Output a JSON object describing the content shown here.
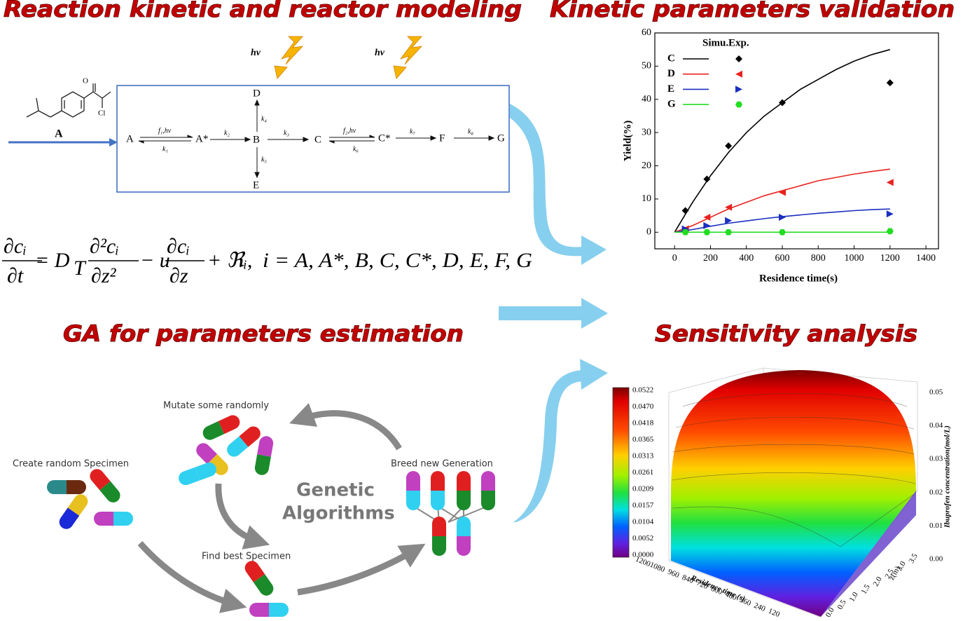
{
  "panels": {
    "reaction": "Reaction kinetic and reactor modeling",
    "validation": "Kinetic parameters validation",
    "ga": "GA for parameters estimation",
    "sensitivity": "Sensitivity analysis"
  },
  "reaction": {
    "molecule_label": "A",
    "atoms": [
      "O",
      "Cl"
    ],
    "light": [
      "hν",
      "hν"
    ],
    "species": {
      "A": "A",
      "A_star": "A*",
      "B": "B",
      "C": "C",
      "C_star": "C*",
      "F": "F",
      "G": "G",
      "D": "D",
      "E": "E"
    },
    "rates": {
      "f1": "f₁,hν",
      "k1": "k₁",
      "k2": "k₂",
      "k3": "k₃",
      "f2": "f₂,hν",
      "k6": "k₆",
      "k7": "k₇",
      "k8": "k₈",
      "k4": "k₄",
      "k5": "k₅"
    }
  },
  "equation": {
    "t1_num": "∂cᵢ",
    "t1_den": "∂t",
    "eq": "= D",
    "sub": "T",
    "t2_num": "∂²cᵢ",
    "t2_den": "∂z²",
    "minus": "− u",
    "t3_num": "∂cᵢ",
    "t3_den": "∂z",
    "plus": "+ ℜᵢ,",
    "index": "i = A, A*, B, C, C*, D, E, F, G"
  },
  "chart_data": {
    "type": "line",
    "xlabel": "Residence time(s)",
    "ylabel": "Yield(%)",
    "legend_headers": [
      "Simu.",
      "Exp."
    ],
    "x": [
      0,
      100,
      200,
      300,
      400,
      500,
      600,
      700,
      800,
      900,
      1000,
      1100,
      1200
    ],
    "exp_x": [
      60,
      180,
      300,
      600,
      1200
    ],
    "xlim": [
      -110,
      1470
    ],
    "xticks": [
      0,
      200,
      400,
      600,
      800,
      1000,
      1200,
      1400
    ],
    "ylim": [
      -5,
      60
    ],
    "yticks": [
      0,
      10,
      20,
      30,
      40,
      50,
      60
    ],
    "series": [
      {
        "name": "C",
        "color": "#000000",
        "marker": "diamond",
        "values": [
          0,
          9,
          17,
          24,
          30,
          35,
          39,
          43,
          46,
          49,
          51.5,
          53.5,
          55
        ],
        "exp_values": [
          6.5,
          16,
          26,
          39,
          45
        ]
      },
      {
        "name": "D",
        "color": "#e8231f",
        "marker": "triangle-left",
        "values": [
          0,
          2,
          4.5,
          7,
          9,
          11,
          12.5,
          14,
          15.5,
          16.5,
          17.5,
          18.3,
          19
        ],
        "exp_values": [
          1,
          4.5,
          7.5,
          12,
          15
        ]
      },
      {
        "name": "E",
        "color": "#1b2fbf",
        "marker": "triangle-right",
        "values": [
          0,
          0.8,
          1.8,
          2.7,
          3.4,
          4.1,
          4.7,
          5.2,
          5.7,
          6.1,
          6.5,
          6.8,
          7
        ],
        "exp_values": [
          1,
          2,
          3.5,
          4.5,
          5.5
        ]
      },
      {
        "name": "G",
        "color": "#22dd22",
        "marker": "hexagon",
        "values": [
          0,
          0,
          0,
          0,
          0,
          0,
          0,
          0,
          0,
          0,
          0,
          0,
          0
        ],
        "exp_values": [
          0,
          0,
          0,
          0,
          0.3
        ]
      }
    ]
  },
  "ga": {
    "steps": {
      "create": "Create random Specimen",
      "mutate": "Mutate some randomly",
      "breed": "Breed new Generation",
      "find": "Find best Specimen"
    },
    "center": [
      "Genetic",
      "Algorithms"
    ]
  },
  "sensitivity": {
    "colorbar": [
      "0.0522",
      "0.0470",
      "0.0418",
      "0.0365",
      "0.0313",
      "0.0261",
      "0.0209",
      "0.0157",
      "0.0104",
      "0.0052",
      "0.0000"
    ],
    "z_label": "Ibuprofen concentration(mol/L)",
    "z_ticks": [
      "0.05",
      "0.04",
      "0.03",
      "0.02",
      "0.01",
      "0.00"
    ],
    "x_label": "Residence time (s)",
    "x_ticks": [
      "1200",
      "1080",
      "960",
      "840",
      "720",
      "600",
      "480",
      "360",
      "240",
      "120"
    ],
    "y_label": "z(m)",
    "y_ticks": [
      "0.0",
      "0.5",
      "1.0",
      "1.5",
      "2.0",
      "2.5",
      "3.0",
      "3.5"
    ]
  }
}
